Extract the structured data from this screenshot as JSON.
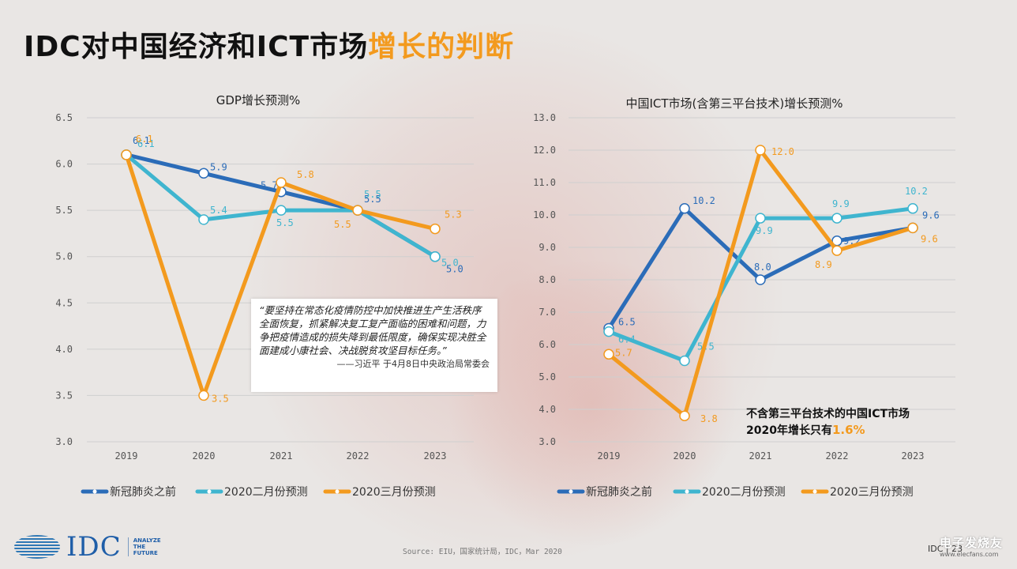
{
  "page": {
    "title_black": "IDC对中国经济和ICT市场",
    "title_orange": "增长的判断",
    "quote_text": "“要坚持在常态化疫情防控中加快推进生产生活秩序全面恢复，抓紧解决复工复产面临的困难和问题，力争把疫情造成的损失降到最低限度，确保实现决胜全面建成小康社会、决战脱贫攻坚目标任务。”",
    "quote_attr": "——习近平 于4月8日中央政治局常委会",
    "note_text": "不含第三平台技术的中国ICT市场2020年增长只有",
    "note_highlight": "1.6%",
    "logo_text": "IDC",
    "logo_tag": [
      "ANALYZE",
      "THE",
      "FUTURE"
    ],
    "source": "Source: EIU，国家统计局，IDC，Mar 2020",
    "page_number": "IDC | 23",
    "watermark_name": "电子发烧友",
    "watermark_url": "www.elecfans.com"
  },
  "colors": {
    "dark_blue": "#2b6cb8",
    "light_blue": "#3fb5cf",
    "orange": "#f39a1e"
  },
  "chart_data": [
    {
      "type": "line",
      "title": "GDP增长预测%",
      "categories": [
        "2019",
        "2020",
        "2021",
        "2022",
        "2023"
      ],
      "ylim": [
        3.0,
        6.5
      ],
      "yticks": [
        "3.0",
        "3.5",
        "4.0",
        "4.5",
        "5.0",
        "5.5",
        "6.0",
        "6.5"
      ],
      "legend_position": "bottom",
      "series": [
        {
          "name": "新冠肺炎之前",
          "color": "#2b6cb8",
          "values": [
            6.1,
            5.9,
            5.7,
            5.5,
            5.0
          ],
          "labels": [
            "6.1",
            "5.9",
            "5.7",
            "5.5",
            "5.0"
          ]
        },
        {
          "name": "2020二月份预测",
          "color": "#3fb5cf",
          "values": [
            6.1,
            5.4,
            5.5,
            5.5,
            5.0
          ],
          "labels": [
            "6.1",
            "5.4",
            "5.5",
            "5.5",
            "5.0"
          ]
        },
        {
          "name": "2020三月份预测",
          "color": "#f39a1e",
          "values": [
            6.1,
            3.5,
            5.8,
            5.5,
            5.3
          ],
          "labels": [
            "6.1",
            "3.5",
            "5.8",
            "5.5",
            "5.3"
          ]
        }
      ]
    },
    {
      "type": "line",
      "title": "中国ICT市场(含第三平台技术)增长预测%",
      "categories": [
        "2019",
        "2020",
        "2021",
        "2022",
        "2023"
      ],
      "ylim": [
        3.0,
        13.0
      ],
      "yticks": [
        "3.0",
        "4.0",
        "5.0",
        "6.0",
        "7.0",
        "8.0",
        "9.0",
        "10.0",
        "11.0",
        "12.0",
        "13.0"
      ],
      "legend_position": "bottom",
      "series": [
        {
          "name": "新冠肺炎之前",
          "color": "#2b6cb8",
          "values": [
            6.5,
            10.2,
            8.0,
            9.2,
            9.6
          ],
          "labels": [
            "6.5",
            "10.2",
            "8.0",
            "9.2",
            "9.6"
          ]
        },
        {
          "name": "2020二月份预测",
          "color": "#3fb5cf",
          "values": [
            6.4,
            5.5,
            9.9,
            9.9,
            10.2
          ],
          "labels": [
            "6.4",
            "5.5",
            "9.9",
            "9.9",
            "10.2"
          ]
        },
        {
          "name": "2020三月份预测",
          "color": "#f39a1e",
          "values": [
            5.7,
            3.8,
            12.0,
            8.9,
            9.6
          ],
          "labels": [
            "5.7",
            "3.8",
            "12.0",
            "8.9",
            "9.6"
          ]
        }
      ]
    }
  ]
}
